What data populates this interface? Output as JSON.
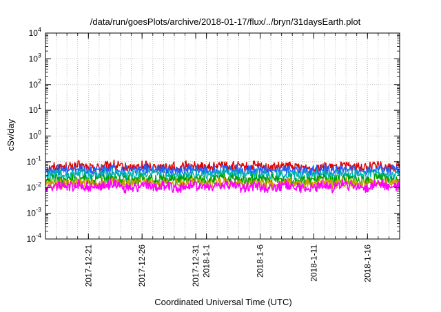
{
  "chart_data": {
    "type": "line",
    "title": "/data/run/goesPlots/archive/2018-01-17/flux/../bryn/31daysEarth.plot",
    "xlabel": "Coordinated Universal Time (UTC)",
    "ylabel": "cSv/day",
    "y_scale": "log",
    "ylim": [
      0.0001,
      10000
    ],
    "xlim": [
      "2017-12-17",
      "2018-01-19"
    ],
    "grid": true,
    "y_ticks": [
      {
        "value": 0.0001,
        "base": "10",
        "exp": "-4"
      },
      {
        "value": 0.001,
        "base": "10",
        "exp": "-3"
      },
      {
        "value": 0.01,
        "base": "10",
        "exp": "-2"
      },
      {
        "value": 0.1,
        "base": "10",
        "exp": "-1"
      },
      {
        "value": 1,
        "base": "10",
        "exp": "0"
      },
      {
        "value": 10,
        "base": "10",
        "exp": "1"
      },
      {
        "value": 100,
        "base": "10",
        "exp": "2"
      },
      {
        "value": 1000,
        "base": "10",
        "exp": "3"
      },
      {
        "value": 10000,
        "base": "10",
        "exp": "4"
      }
    ],
    "x_tick_dates": [
      "2017-12-21",
      "2017-12-26",
      "2017-12-31",
      "2018-01-01",
      "2018-01-06",
      "2018-01-11",
      "2018-01-16"
    ],
    "x_tick_labels": [
      "2017-12-21",
      "2017-12-26",
      "2017-12-31",
      "2018-1-1",
      "2018-1-6",
      "2018-1-11",
      "2018-1-16"
    ],
    "series": [
      {
        "color": "#e00000",
        "values": [
          0.055,
          0.065,
          0.06,
          0.07,
          0.058,
          0.062,
          0.075,
          0.06,
          0.058,
          0.072,
          0.06,
          0.065,
          0.058,
          0.07,
          0.062,
          0.06,
          0.075,
          0.065,
          0.06,
          0.07,
          0.058,
          0.062,
          0.068,
          0.06,
          0.058,
          0.065,
          0.06,
          0.07,
          0.062,
          0.058,
          0.075,
          0.06,
          0.065
        ]
      },
      {
        "color": "#2060ff",
        "values": [
          0.042,
          0.05,
          0.046,
          0.055,
          0.045,
          0.048,
          0.058,
          0.046,
          0.045,
          0.056,
          0.046,
          0.05,
          0.045,
          0.054,
          0.048,
          0.046,
          0.058,
          0.05,
          0.046,
          0.054,
          0.045,
          0.048,
          0.052,
          0.046,
          0.045,
          0.05,
          0.046,
          0.054,
          0.048,
          0.045,
          0.058,
          0.046,
          0.05
        ]
      },
      {
        "color": "#00b0b0",
        "values": [
          0.028,
          0.033,
          0.03,
          0.036,
          0.03,
          0.032,
          0.038,
          0.03,
          0.03,
          0.037,
          0.03,
          0.033,
          0.03,
          0.035,
          0.032,
          0.03,
          0.038,
          0.033,
          0.03,
          0.035,
          0.03,
          0.032,
          0.034,
          0.03,
          0.03,
          0.033,
          0.03,
          0.035,
          0.032,
          0.03,
          0.038,
          0.03,
          0.033
        ]
      },
      {
        "color": "#00a000",
        "values": [
          0.018,
          0.021,
          0.019,
          0.023,
          0.019,
          0.02,
          0.024,
          0.019,
          0.019,
          0.023,
          0.019,
          0.021,
          0.019,
          0.022,
          0.02,
          0.019,
          0.024,
          0.021,
          0.019,
          0.022,
          0.019,
          0.02,
          0.022,
          0.019,
          0.019,
          0.021,
          0.019,
          0.022,
          0.02,
          0.019,
          0.024,
          0.019,
          0.021
        ]
      },
      {
        "color": "#c8a000",
        "values": [
          0.013,
          0.015,
          0.014,
          0.016,
          0.014,
          0.014,
          0.017,
          0.014,
          0.014,
          0.016,
          0.014,
          0.015,
          0.014,
          0.016,
          0.014,
          0.014,
          0.017,
          0.015,
          0.014,
          0.016,
          0.014,
          0.014,
          0.016,
          0.014,
          0.014,
          0.015,
          0.014,
          0.016,
          0.014,
          0.014,
          0.017,
          0.014,
          0.015
        ]
      },
      {
        "color": "#ff00ff",
        "values": [
          0.009,
          0.012,
          0.01,
          0.013,
          0.009,
          0.011,
          0.014,
          0.01,
          0.009,
          0.013,
          0.01,
          0.012,
          0.009,
          0.013,
          0.011,
          0.01,
          0.014,
          0.012,
          0.01,
          0.013,
          0.009,
          0.011,
          0.012,
          0.01,
          0.009,
          0.012,
          0.01,
          0.013,
          0.011,
          0.009,
          0.014,
          0.01,
          0.012
        ]
      }
    ]
  }
}
